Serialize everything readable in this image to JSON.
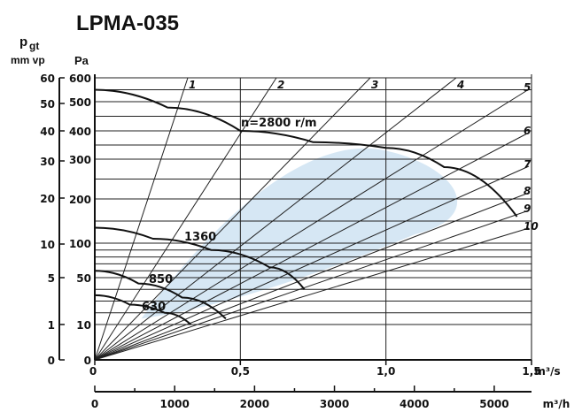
{
  "chart_data": {
    "type": "line",
    "title": "LPMA-035",
    "yaxis_left": {
      "label_top": "p",
      "label_sub": "gt",
      "unit": "mm vp",
      "ticks": [
        "60",
        "50",
        "40",
        "30",
        "20",
        "10",
        "5",
        "1",
        "0"
      ]
    },
    "yaxis_pa": {
      "unit": "Pa",
      "ticks": [
        "600",
        "500",
        "400",
        "300",
        "200",
        "100",
        "50",
        "10",
        "0"
      ]
    },
    "xaxis_m3s": {
      "unit": "m³/s",
      "ticks": [
        "0",
        "0,5",
        "1,0",
        "1,5"
      ],
      "range": [
        0,
        1.5
      ]
    },
    "xaxis_m3h": {
      "unit": "m³/h",
      "ticks": [
        "0",
        "1000",
        "2000",
        "3000",
        "4000",
        "5000"
      ],
      "range": [
        0,
        5400
      ]
    },
    "system_line_labels": [
      "1",
      "2",
      "3",
      "4",
      "5",
      "6",
      "7",
      "8",
      "9",
      "10"
    ],
    "speed_curves": [
      {
        "name": "n=2800 r/m",
        "q": [
          0,
          0.25,
          0.5,
          0.75,
          1.0,
          1.2,
          1.45
        ],
        "pa": [
          550,
          480,
          400,
          360,
          340,
          280,
          160
        ]
      },
      {
        "name": "1360",
        "q": [
          0,
          0.2,
          0.4,
          0.6,
          0.72
        ],
        "pa": [
          135,
          110,
          90,
          65,
          40
        ]
      },
      {
        "name": "850",
        "q": [
          0,
          0.15,
          0.3,
          0.45
        ],
        "pa": [
          60,
          45,
          33,
          15
        ]
      },
      {
        "name": "630",
        "q": [
          0,
          0.12,
          0.24,
          0.33
        ],
        "pa": [
          35,
          27,
          20,
          10
        ]
      }
    ],
    "grid": true,
    "shaded_region": "optimal efficiency area",
    "colors": {
      "line": "#111111",
      "shade": "#cfe3f2"
    }
  }
}
